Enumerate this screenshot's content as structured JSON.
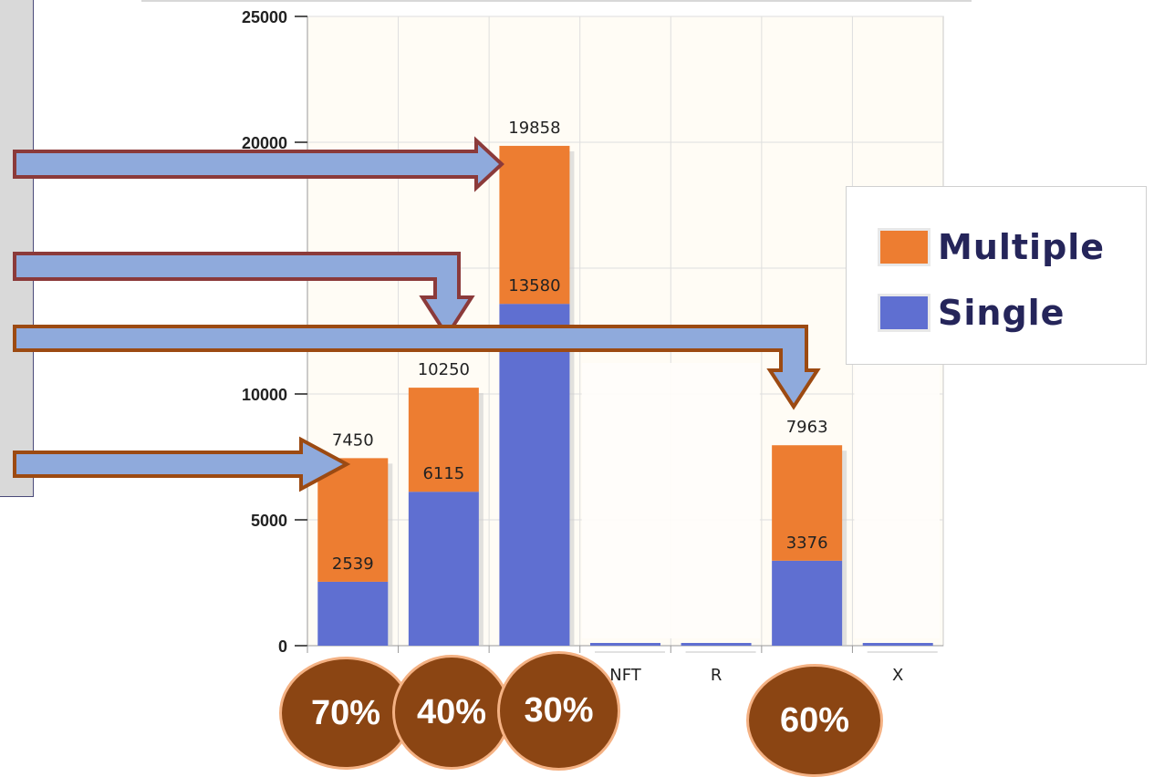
{
  "chart_data": {
    "type": "bar",
    "stacked": true,
    "categories": [
      "",
      "",
      "",
      "NFT",
      "R",
      "",
      "X"
    ],
    "series": [
      {
        "name": "Single",
        "values": [
          2539,
          6115,
          13580,
          0,
          0,
          3376,
          0
        ],
        "color": "#5f6fd1"
      },
      {
        "name": "Multiple",
        "values": [
          4911,
          4135,
          6278,
          0,
          0,
          4587,
          0
        ],
        "color": "#ed7d31"
      }
    ],
    "totals": [
      7450,
      10250,
      19858,
      0,
      0,
      7963,
      0
    ],
    "single_labels": [
      "2539",
      "6115",
      "13580",
      "",
      "",
      "3376",
      ""
    ],
    "total_labels": [
      "7450",
      "10250",
      "19858",
      "",
      "",
      "7963",
      ""
    ],
    "ylim": [
      0,
      25000
    ],
    "yticks": [
      0,
      5000,
      10000,
      20000,
      25000
    ],
    "grid": true,
    "legend": "right"
  },
  "legend": {
    "items": [
      {
        "label": "Multiple",
        "color": "#ed7d31"
      },
      {
        "label": "Single",
        "color": "#5f6fd1"
      }
    ]
  },
  "percent_badges": [
    {
      "label": "70%"
    },
    {
      "label": "40%"
    },
    {
      "label": "30%"
    },
    {
      "label": "60%"
    }
  ],
  "colors": {
    "arrow_fill": "#8faadc",
    "arrow_border_red": "#8b3a3a",
    "arrow_border_brown": "#9c4a12",
    "badge_fill": "#8b4513",
    "badge_border": "#f4b183",
    "plot_bg": "#fffcf5"
  }
}
